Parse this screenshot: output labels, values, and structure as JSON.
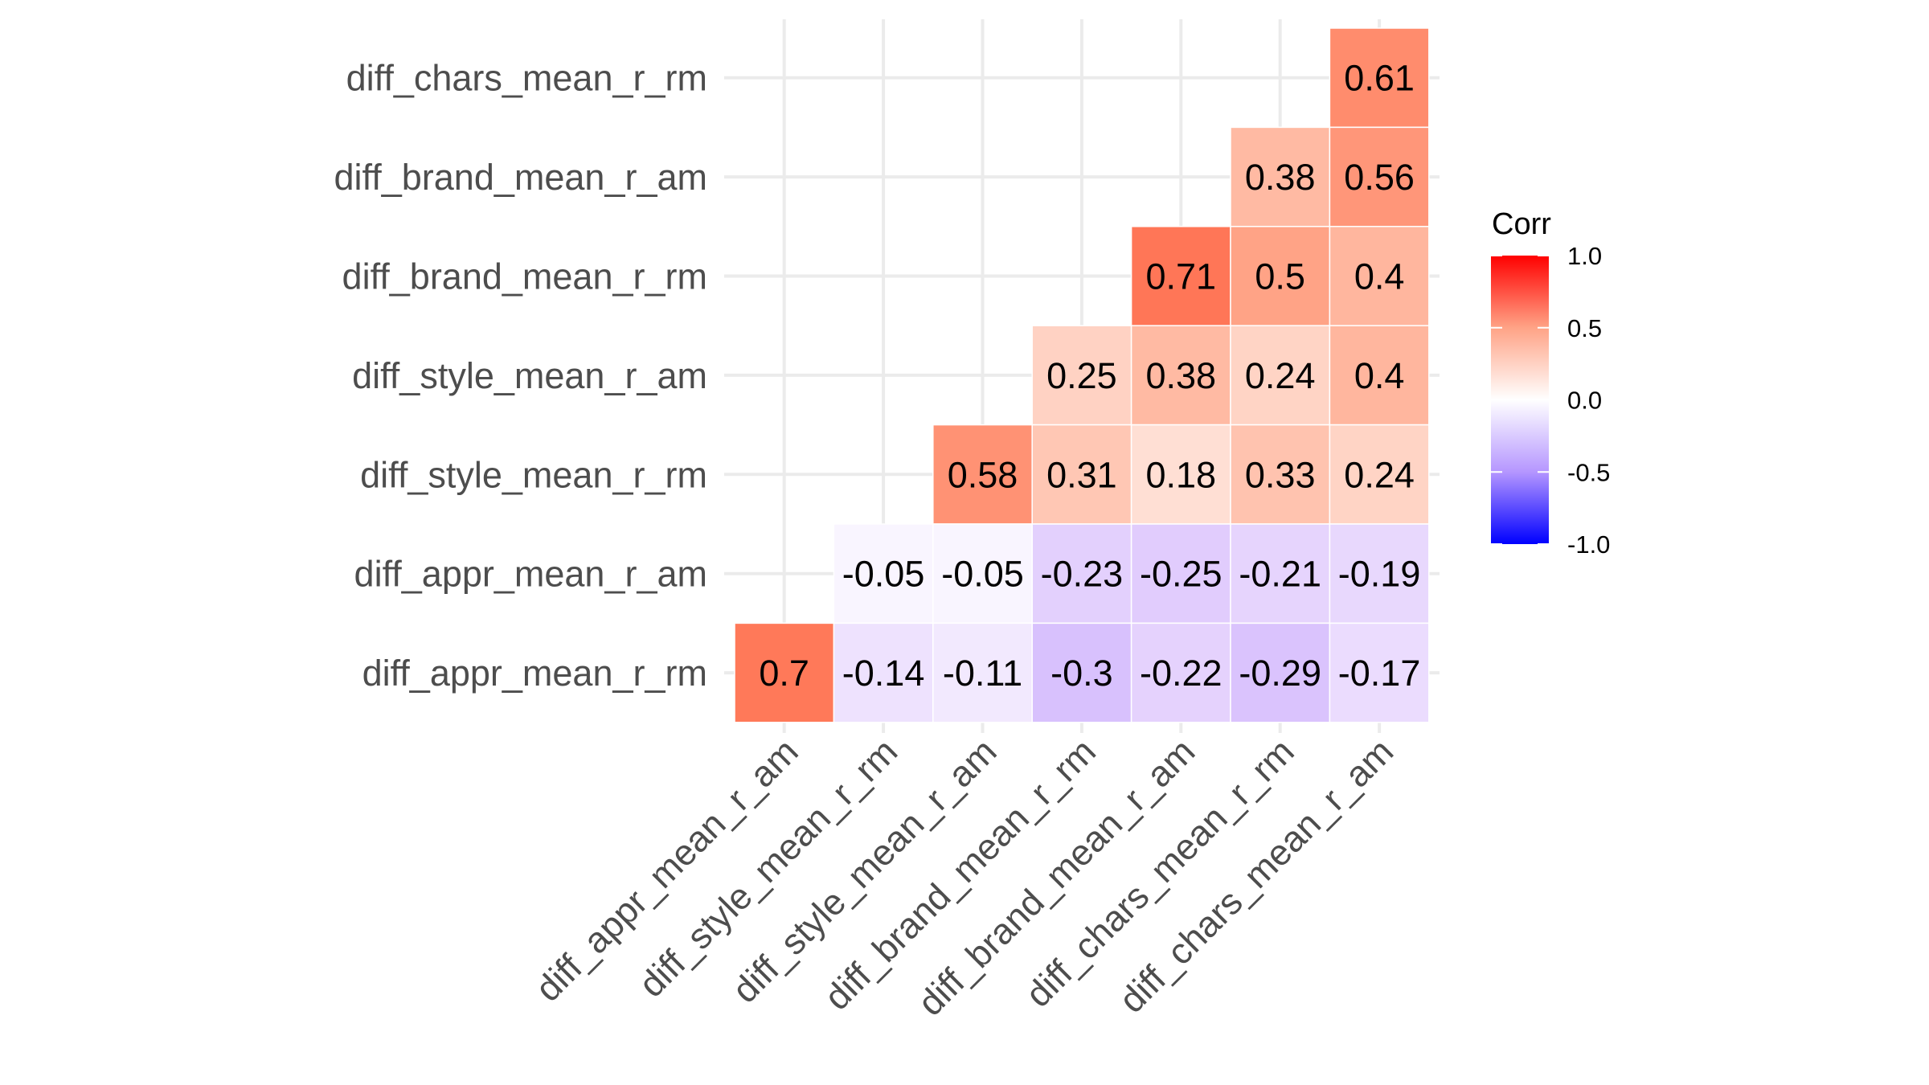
{
  "chart_data": {
    "type": "heatmap",
    "title": "",
    "xlabel": "",
    "ylabel": "",
    "x_categories": [
      "diff_appr_mean_r_am",
      "diff_style_mean_r_rm",
      "diff_style_mean_r_am",
      "diff_brand_mean_r_rm",
      "diff_brand_mean_r_am",
      "diff_chars_mean_r_rm",
      "diff_chars_mean_r_am"
    ],
    "y_categories_top_to_bottom": [
      "diff_chars_mean_r_rm",
      "diff_brand_mean_r_am",
      "diff_brand_mean_r_rm",
      "diff_style_mean_r_am",
      "diff_style_mean_r_rm",
      "diff_appr_mean_r_am",
      "diff_appr_mean_r_rm"
    ],
    "values": [
      [
        null,
        null,
        null,
        null,
        null,
        null,
        0.61
      ],
      [
        null,
        null,
        null,
        null,
        null,
        0.38,
        0.56
      ],
      [
        null,
        null,
        null,
        null,
        0.71,
        0.5,
        0.4
      ],
      [
        null,
        null,
        null,
        0.25,
        0.38,
        0.24,
        0.4
      ],
      [
        null,
        null,
        0.58,
        0.31,
        0.18,
        0.33,
        0.24
      ],
      [
        null,
        -0.05,
        -0.05,
        -0.23,
        -0.25,
        -0.21,
        -0.19
      ],
      [
        0.7,
        -0.14,
        -0.11,
        -0.3,
        -0.22,
        -0.29,
        -0.17
      ]
    ],
    "legend": {
      "title": "Corr",
      "position": "right",
      "range": [
        -1,
        1
      ],
      "ticks": [
        1.0,
        0.5,
        0.0,
        -0.5,
        -1.0
      ],
      "tick_labels": [
        "1.0",
        "0.5",
        "0.0",
        "-0.5",
        "-1.0"
      ],
      "colors": {
        "low": "#0000FF",
        "mid": "#FFFFFF",
        "high": "#FF0000"
      }
    },
    "grid": true
  }
}
